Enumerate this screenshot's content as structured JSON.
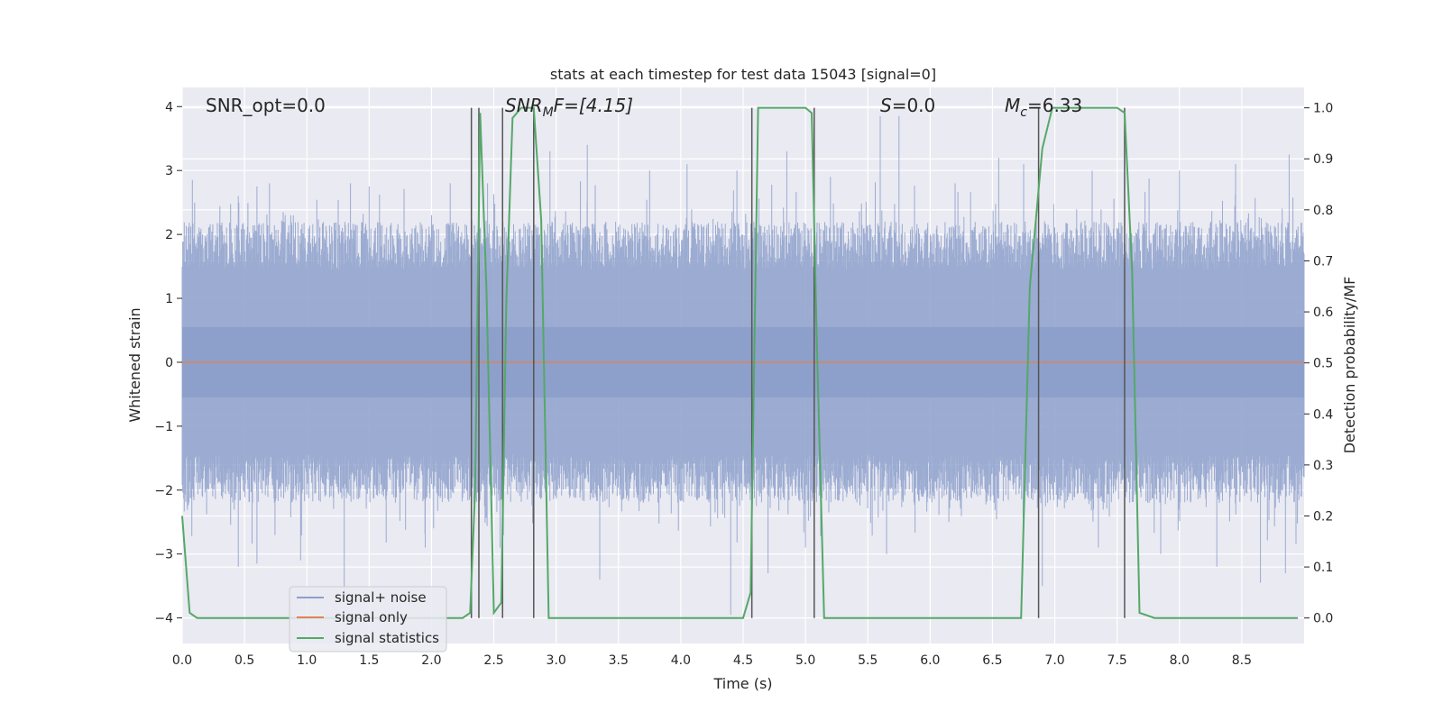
{
  "chart_data": {
    "type": "line",
    "title": "stats at each timestep for test data 15043 [signal=0]",
    "xlabel": "Time (s)",
    "ylabel_left": "Whitened strain",
    "ylabel_right": "Detection probability/MF",
    "xlim": [
      0.0,
      9.0
    ],
    "ylim_left": [
      -4.4,
      4.3
    ],
    "ylim_right": [
      -0.05,
      1.04
    ],
    "x_ticks": [
      "0.0",
      "0.5",
      "1.0",
      "1.5",
      "2.0",
      "2.5",
      "3.0",
      "3.5",
      "4.0",
      "4.5",
      "5.0",
      "5.5",
      "6.0",
      "6.5",
      "7.0",
      "7.5",
      "8.0",
      "8.5"
    ],
    "y_ticks_left": [
      "4",
      "3",
      "2",
      "1",
      "0",
      "−1",
      "−2",
      "−3",
      "−4"
    ],
    "y_ticks_right": [
      "1.0",
      "0.9",
      "0.8",
      "0.7",
      "0.6",
      "0.5",
      "0.4",
      "0.3",
      "0.2",
      "0.1",
      "0.0"
    ],
    "grid": true,
    "legend_position": "lower-left",
    "annotations": {
      "snr_opt": "SNR_opt=0.0",
      "snr_mf_main": "SNR",
      "snr_mf_sub": "M",
      "snr_mf_rest": "F=[4.15]",
      "s_main": "S",
      "s_rest": "=0.0",
      "mc_main": "M",
      "mc_sub": "c",
      "mc_rest": "=6.33"
    },
    "series": [
      {
        "name": "signal+ noise",
        "axis": "left",
        "color": "#8da0cb",
        "style": "noise band, typical amplitude about ±1.8 with spikes to about ±3.9",
        "peaks_up": [
          [
            0.1,
            2.5
          ],
          [
            0.45,
            2.6
          ],
          [
            0.6,
            2.75
          ],
          [
            0.7,
            2.8
          ],
          [
            1.35,
            2.8
          ],
          [
            1.5,
            2.75
          ],
          [
            2.15,
            2.8
          ],
          [
            2.45,
            2.8
          ],
          [
            2.95,
            3.3
          ],
          [
            3.25,
            3.4
          ],
          [
            3.75,
            3.0
          ],
          [
            4.05,
            3.1
          ],
          [
            4.45,
            3.0
          ],
          [
            4.85,
            3.3
          ],
          [
            5.2,
            2.9
          ],
          [
            5.6,
            3.85
          ],
          [
            5.75,
            3.85
          ],
          [
            6.2,
            2.8
          ],
          [
            6.55,
            3.2
          ],
          [
            6.75,
            3.1
          ],
          [
            7.3,
            3.0
          ],
          [
            8.0,
            3.0
          ],
          [
            8.45,
            3.1
          ],
          [
            8.88,
            3.25
          ]
        ],
        "peaks_down": [
          [
            0.45,
            -3.2
          ],
          [
            0.6,
            -3.15
          ],
          [
            0.95,
            -3.1
          ],
          [
            1.3,
            -3.7
          ],
          [
            1.95,
            -2.9
          ],
          [
            2.55,
            -2.9
          ],
          [
            3.35,
            -3.4
          ],
          [
            4.4,
            -3.95
          ],
          [
            4.7,
            -3.3
          ],
          [
            5.0,
            -2.9
          ],
          [
            5.65,
            -3.0
          ],
          [
            6.15,
            -2.5
          ],
          [
            6.9,
            -3.5
          ],
          [
            7.35,
            -2.9
          ],
          [
            7.85,
            -3.0
          ],
          [
            8.3,
            -3.2
          ],
          [
            8.65,
            -3.45
          ],
          [
            8.85,
            -3.3
          ]
        ]
      },
      {
        "name": "signal only",
        "axis": "left",
        "color": "#dd8452",
        "x": [
          0.0,
          9.0
        ],
        "y": [
          0.0,
          0.0
        ]
      },
      {
        "name": "signal statistics",
        "axis": "right",
        "color": "#55a868",
        "x": [
          0.0,
          0.06,
          0.12,
          0.2,
          2.25,
          2.31,
          2.35,
          2.39,
          2.44,
          2.5,
          2.56,
          2.6,
          2.65,
          2.72,
          2.82,
          2.88,
          2.94,
          3.1,
          4.5,
          4.56,
          4.62,
          4.7,
          5.0,
          5.05,
          5.09,
          5.15,
          5.3,
          6.6,
          6.73,
          6.8,
          6.9,
          6.98,
          7.05,
          7.5,
          7.56,
          7.62,
          7.68,
          7.8,
          8.95
        ],
        "y": [
          0.2,
          0.01,
          0.0,
          0.0,
          0.0,
          0.01,
          0.25,
          0.99,
          0.65,
          0.01,
          0.03,
          0.62,
          0.98,
          1.0,
          1.0,
          0.78,
          0.0,
          0.0,
          0.0,
          0.05,
          1.0,
          1.0,
          1.0,
          0.99,
          0.55,
          0.0,
          0.0,
          0.0,
          0.0,
          0.65,
          0.92,
          1.0,
          1.0,
          1.0,
          0.99,
          0.68,
          0.01,
          0.0,
          0.0
        ]
      }
    ],
    "vlines_x": [
      2.32,
      2.38,
      2.57,
      2.82,
      4.57,
      5.07,
      6.87,
      7.56
    ],
    "legend": [
      {
        "label": "signal+ noise",
        "color": "#8da0cb"
      },
      {
        "label": "signal only",
        "color": "#dd8452"
      },
      {
        "label": "signal statistics",
        "color": "#55a868"
      }
    ]
  }
}
